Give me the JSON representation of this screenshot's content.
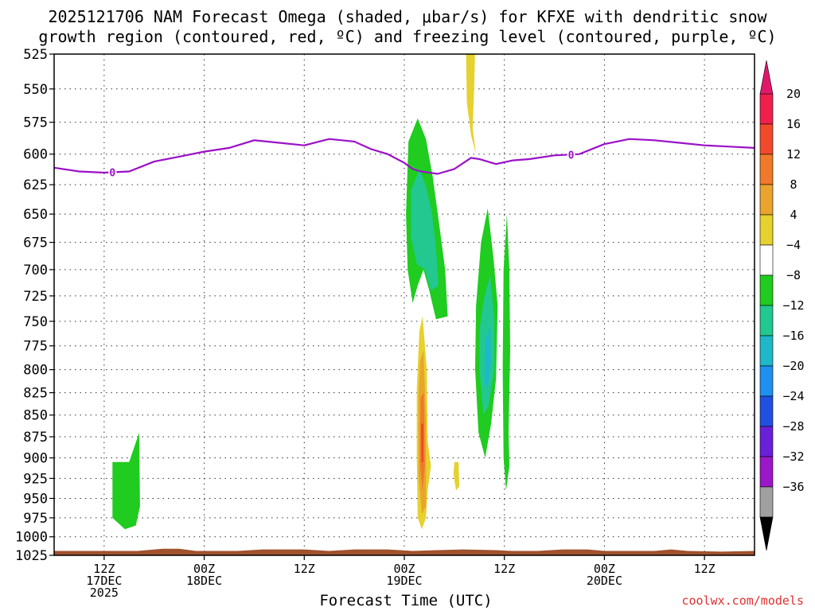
{
  "title_line1": "2025121706 NAM Forecast Omega (shaded, μbar/s) for KFXE with dendritic snow",
  "title_line2": "growth region (contoured, red, ºC) and freezing level (contoured, purple, ºC)",
  "x_axis_title": "Forecast Time (UTC)",
  "credit": "coolwx.com/models",
  "chart_data": {
    "type": "heatmap",
    "y_axis": {
      "unit": "hPa",
      "ticks": [
        525,
        550,
        575,
        600,
        625,
        650,
        675,
        700,
        725,
        750,
        775,
        800,
        825,
        850,
        875,
        900,
        925,
        950,
        975,
        1000,
        1025
      ],
      "range": [
        525,
        1025
      ],
      "scale": "log-pressure"
    },
    "x_axis": {
      "unit": "hours since 2025-12-17 06Z",
      "range": [
        0,
        84
      ],
      "ticks": [
        {
          "hour": 6,
          "lines": [
            "12Z",
            "17DEC",
            "2025"
          ]
        },
        {
          "hour": 18,
          "lines": [
            "00Z",
            "18DEC"
          ]
        },
        {
          "hour": 30,
          "lines": [
            "12Z"
          ]
        },
        {
          "hour": 42,
          "lines": [
            "00Z",
            "19DEC"
          ]
        },
        {
          "hour": 54,
          "lines": [
            "12Z"
          ]
        },
        {
          "hour": 66,
          "lines": [
            "00Z",
            "20DEC"
          ]
        },
        {
          "hour": 78,
          "lines": [
            "12Z"
          ]
        }
      ]
    },
    "grid": true,
    "colorbar": {
      "labels": [
        "20",
        "16",
        "12",
        "8",
        "4",
        "−4",
        "−8",
        "−12",
        "−16",
        "−20",
        "−24",
        "−28",
        "−32",
        "−36"
      ],
      "colors": [
        "#f01f4e",
        "#f04a2a",
        "#ef7a2a",
        "#e9a42e",
        "#e6d12e",
        "#ffffff",
        "#1fcc1f",
        "#22c890",
        "#1eb8c8",
        "#1e90f0",
        "#2050e0",
        "#6a20d8",
        "#9b18c8",
        "#a0a0a0"
      ],
      "top_arrow_color": "#e0186a",
      "bottom_arrow_color": "#000000"
    },
    "freezing_level": {
      "label": "0",
      "color": "#9b10c8",
      "hours": [
        0,
        3,
        6,
        9,
        12,
        15,
        18,
        21,
        24,
        27,
        30,
        33,
        36,
        38,
        40,
        42,
        43,
        44,
        46,
        48,
        50,
        51,
        53,
        55,
        57,
        60,
        63,
        66,
        69,
        72,
        75,
        78,
        81,
        84
      ],
      "pressure": [
        611,
        614,
        615,
        614,
        606,
        602,
        598,
        595,
        589,
        591,
        593,
        588,
        590,
        596,
        600,
        607,
        612,
        614,
        616,
        612,
        603,
        604,
        608,
        605,
        604,
        601,
        600,
        592,
        588,
        589,
        591,
        593,
        594,
        595
      ]
    },
    "omega_regions": [
      {
        "value": -6,
        "color": "#1fcc1f",
        "points": [
          [
            7.0,
            905
          ],
          [
            9.0,
            905
          ],
          [
            10.2,
            870
          ],
          [
            10.3,
            960
          ],
          [
            9.8,
            985
          ],
          [
            8.5,
            990
          ],
          [
            7.0,
            975
          ]
        ]
      },
      {
        "value": -6,
        "color": "#1fcc1f",
        "points": [
          [
            42.2,
            650
          ],
          [
            42.5,
            590
          ],
          [
            43.6,
            572
          ],
          [
            44.6,
            588
          ],
          [
            45.4,
            618
          ],
          [
            46.2,
            660
          ],
          [
            46.9,
            700
          ],
          [
            47.2,
            745
          ],
          [
            45.8,
            748
          ],
          [
            45.0,
            720
          ],
          [
            44.3,
            700
          ],
          [
            43.6,
            715
          ],
          [
            43.0,
            732
          ],
          [
            42.4,
            700
          ]
        ]
      },
      {
        "value": -10,
        "color": "#22c890",
        "points": [
          [
            42.8,
            630
          ],
          [
            43.8,
            612
          ],
          [
            44.6,
            626
          ],
          [
            45.3,
            648
          ],
          [
            45.8,
            680
          ],
          [
            46.1,
            715
          ],
          [
            45.2,
            720
          ],
          [
            44.5,
            700
          ],
          [
            43.5,
            695
          ],
          [
            42.8,
            670
          ]
        ]
      },
      {
        "value": -6,
        "color": "#1fcc1f",
        "points": [
          [
            51.2,
            675
          ],
          [
            52.0,
            645
          ],
          [
            52.7,
            690
          ],
          [
            53.2,
            735
          ],
          [
            53.0,
            810
          ],
          [
            52.4,
            860
          ],
          [
            51.7,
            900
          ],
          [
            50.9,
            870
          ],
          [
            50.5,
            800
          ],
          [
            50.6,
            735
          ]
        ]
      },
      {
        "value": -10,
        "color": "#22c890",
        "points": [
          [
            51.5,
            730
          ],
          [
            52.3,
            705
          ],
          [
            52.8,
            750
          ],
          [
            52.8,
            800
          ],
          [
            52.1,
            840
          ],
          [
            51.5,
            850
          ],
          [
            51.0,
            800
          ],
          [
            51.0,
            760
          ]
        ]
      },
      {
        "value": -14,
        "color": "#1eb8c8",
        "points": [
          [
            51.7,
            770
          ],
          [
            52.3,
            755
          ],
          [
            52.4,
            790
          ],
          [
            52.0,
            820
          ],
          [
            51.6,
            815
          ]
        ]
      },
      {
        "value": -6,
        "color": "#1fcc1f",
        "points": [
          [
            54.3,
            650
          ],
          [
            54.6,
            700
          ],
          [
            54.7,
            780
          ],
          [
            54.5,
            870
          ],
          [
            54.6,
            910
          ],
          [
            54.2,
            940
          ],
          [
            53.9,
            900
          ],
          [
            53.8,
            800
          ],
          [
            53.9,
            700
          ]
        ]
      },
      {
        "value": 6,
        "color": "#e6d12e",
        "points": [
          [
            49.4,
            521
          ],
          [
            50.5,
            521
          ],
          [
            50.4,
            545
          ],
          [
            50.2,
            580
          ],
          [
            50.6,
            600
          ],
          [
            50.0,
            585
          ],
          [
            49.5,
            560
          ]
        ]
      },
      {
        "value": 6,
        "color": "#e6d12e",
        "points": [
          [
            43.8,
            760
          ],
          [
            44.2,
            745
          ],
          [
            44.7,
            800
          ],
          [
            44.8,
            880
          ],
          [
            45.2,
            910
          ],
          [
            44.8,
            940
          ],
          [
            44.6,
            975
          ],
          [
            44.1,
            990
          ],
          [
            43.6,
            975
          ],
          [
            43.5,
            900
          ],
          [
            43.5,
            820
          ]
        ]
      },
      {
        "value": 10,
        "color": "#e9a42e",
        "points": [
          [
            43.9,
            790
          ],
          [
            44.3,
            780
          ],
          [
            44.6,
            860
          ],
          [
            44.6,
            960
          ],
          [
            44.1,
            970
          ],
          [
            43.7,
            920
          ],
          [
            43.7,
            830
          ]
        ]
      },
      {
        "value": 14,
        "color": "#ef7a2a",
        "points": [
          [
            43.95,
            830
          ],
          [
            44.35,
            825
          ],
          [
            44.45,
            910
          ],
          [
            44.2,
            940
          ],
          [
            43.9,
            910
          ]
        ]
      },
      {
        "value": 18,
        "color": "#f04a2a",
        "points": [
          [
            44.0,
            860
          ],
          [
            44.3,
            860
          ],
          [
            44.3,
            905
          ],
          [
            44.05,
            905
          ]
        ]
      },
      {
        "value": 6,
        "color": "#e6d12e",
        "points": [
          [
            48.0,
            905
          ],
          [
            48.5,
            905
          ],
          [
            48.6,
            935
          ],
          [
            48.2,
            940
          ],
          [
            47.9,
            920
          ]
        ]
      }
    ],
    "terrain": {
      "color": "#a0522d",
      "hours": [
        0,
        10,
        13,
        15,
        17,
        22,
        25,
        30,
        33,
        36,
        40,
        43,
        46,
        49,
        53,
        55,
        58,
        61,
        64,
        66,
        68,
        72,
        74,
        76,
        80,
        84
      ],
      "pressure": [
        1019,
        1019,
        1016,
        1016,
        1019,
        1019,
        1017,
        1017,
        1019,
        1017,
        1017,
        1019,
        1018,
        1017,
        1018,
        1019,
        1019,
        1017,
        1017,
        1019,
        1019,
        1019,
        1017,
        1019,
        1020,
        1019
      ]
    }
  }
}
